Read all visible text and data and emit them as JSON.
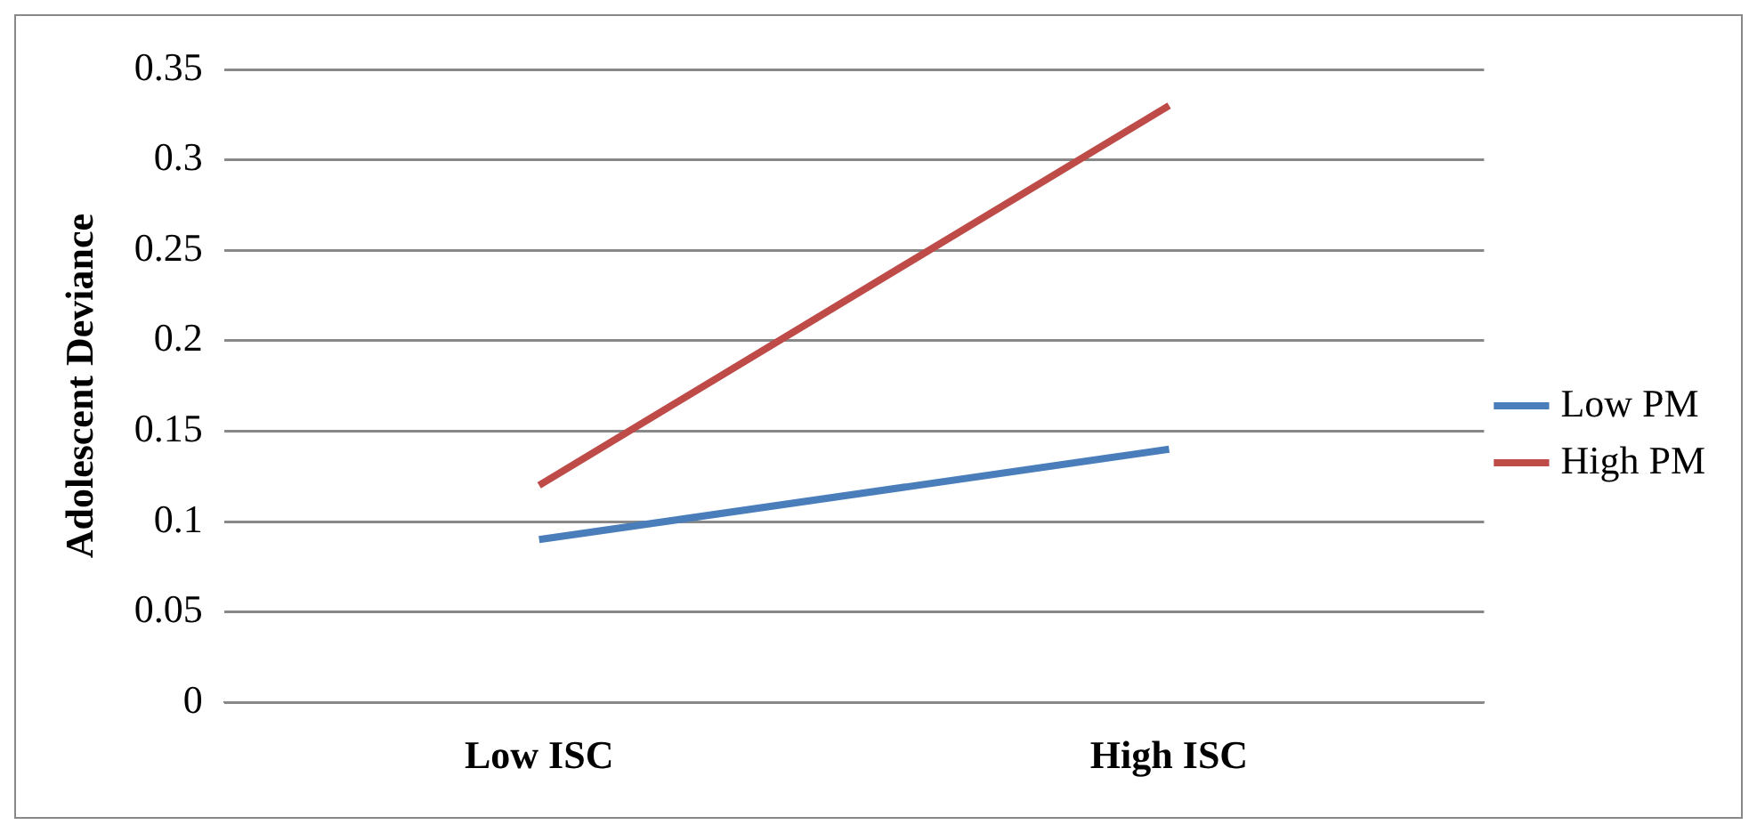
{
  "chart_data": {
    "type": "line",
    "ylabel": "Adolescent Deviance",
    "categories": [
      "Low ISC",
      "High ISC"
    ],
    "series": [
      {
        "name": "Low PM",
        "color": "#4a7ebb",
        "values": [
          0.09,
          0.14
        ]
      },
      {
        "name": "High PM",
        "color": "#be4b48",
        "values": [
          0.12,
          0.33
        ]
      }
    ],
    "ylim": [
      0,
      0.35
    ],
    "yticks": [
      0,
      0.05,
      0.1,
      0.15,
      0.2,
      0.25,
      0.3,
      0.35
    ],
    "grid": "y",
    "legend": "right",
    "marker": "none",
    "line_style": "solid"
  }
}
